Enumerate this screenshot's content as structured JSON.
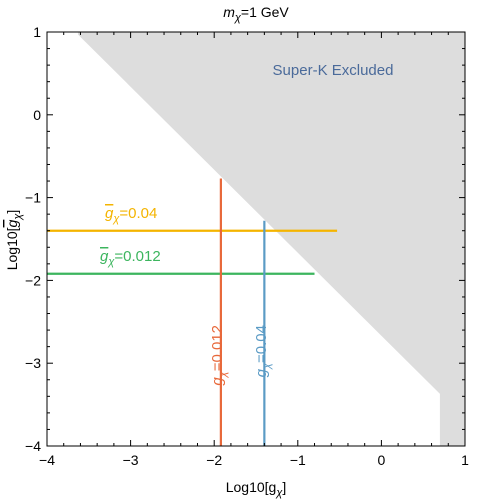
{
  "chart_data": {
    "type": "line",
    "title_prefix": "m",
    "title_sub": "χ",
    "title_suffix": "=1 GeV",
    "xlabel_prefix": "Log10[g",
    "xlabel_sub": "χ",
    "xlabel_suffix": "]",
    "ylabel_prefix": "Log10[",
    "ylabel_bar": "g",
    "ylabel_sub": "χ",
    "ylabel_suffix": "]",
    "xlim": [
      -4,
      1
    ],
    "ylim": [
      -4,
      1
    ],
    "x_ticks": [
      -4,
      -3,
      -2,
      -1,
      0,
      1
    ],
    "x_tick_labels": [
      "−4",
      "−3",
      "−2",
      "−1",
      "0",
      "1"
    ],
    "y_ticks": [
      -4,
      -3,
      -2,
      -1,
      0,
      1
    ],
    "y_tick_labels": [
      "−4",
      "−3",
      "−2",
      "−1",
      "0",
      "1"
    ],
    "grid": false,
    "excluded_region": {
      "label": "Super-K Excluded",
      "color": "#dddddd",
      "label_color": "#4a6a9a",
      "boundary": [
        [
          -3.63,
          0.97
        ],
        [
          0.7,
          -3.37
        ],
        [
          0.7,
          -4.0
        ]
      ]
    },
    "series": [
      {
        "name_prefix": "g",
        "name_sub": "χ",
        "name_suffix": "=0.04",
        "bar": true,
        "orientation": "horizontal",
        "value": -1.4,
        "from": -4,
        "to": -0.53,
        "color": "#f4b400"
      },
      {
        "name_prefix": "g",
        "name_sub": "χ",
        "name_suffix": "=0.012",
        "bar": true,
        "orientation": "horizontal",
        "value": -1.92,
        "from": -4,
        "to": -0.8,
        "color": "#3cb55e"
      },
      {
        "name_prefix": "g",
        "name_sub": "χ",
        "name_suffix": "=0.012",
        "bar": false,
        "orientation": "vertical",
        "value": -1.92,
        "from": -4,
        "to": -0.77,
        "color": "#e8683a"
      },
      {
        "name_prefix": "g",
        "name_sub": "χ",
        "name_suffix": "=0.04",
        "bar": false,
        "orientation": "vertical",
        "value": -1.4,
        "from": -4,
        "to": -1.28,
        "color": "#5b9bc5"
      }
    ]
  }
}
